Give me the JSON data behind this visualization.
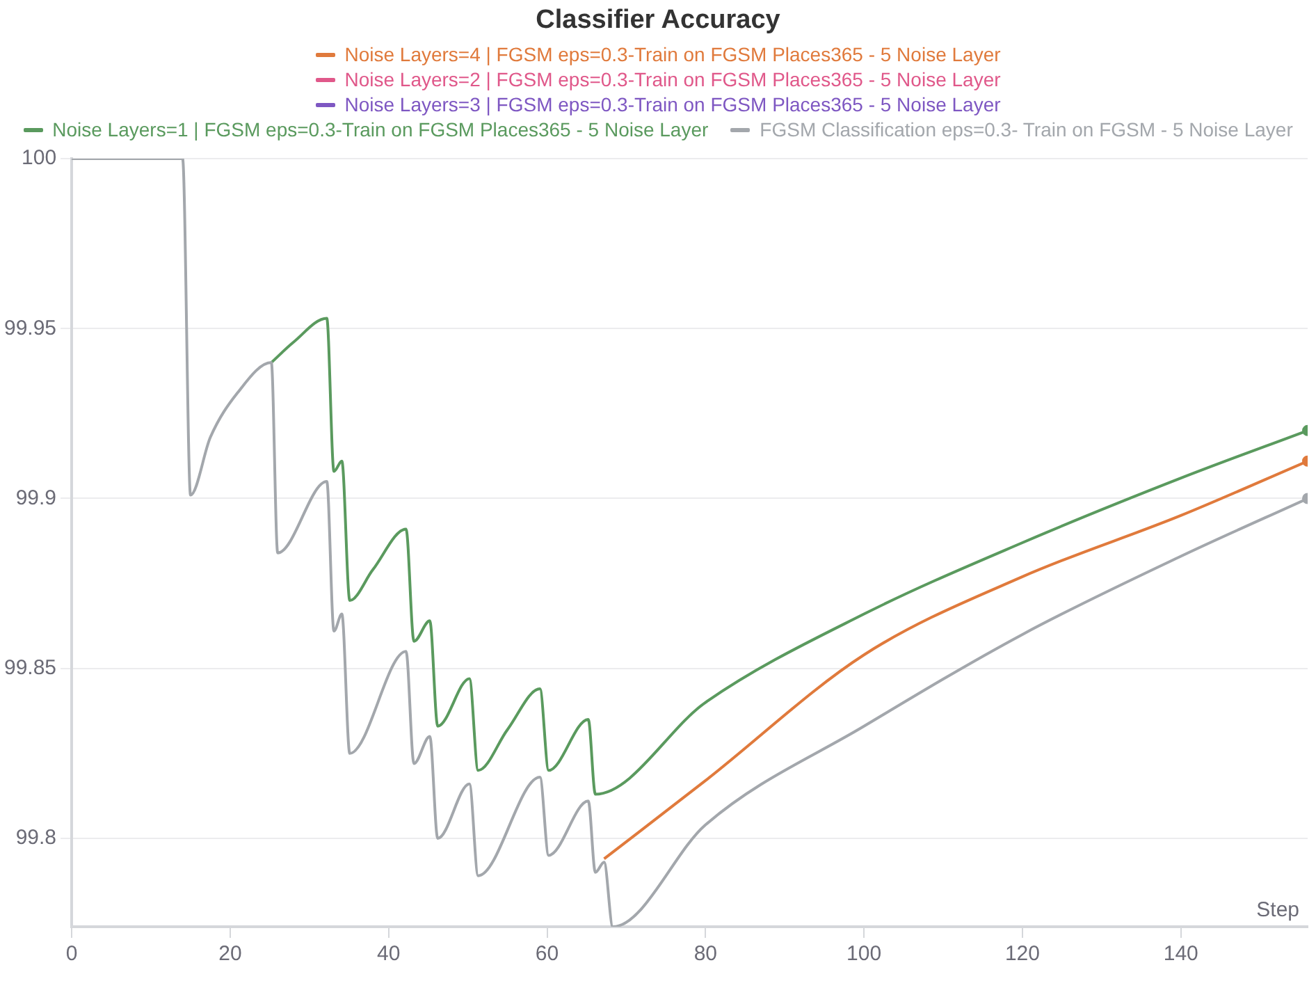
{
  "chart_data": {
    "type": "line",
    "title": "Classifier Accuracy",
    "xlabel": "Step",
    "xlim": [
      0,
      156
    ],
    "xticks": [
      0,
      20,
      40,
      60,
      80,
      100,
      120,
      140
    ],
    "ylim": [
      99.774,
      100
    ],
    "yticks": [
      99.8,
      99.85,
      99.9,
      99.95,
      100
    ],
    "grid": "y",
    "legend": "top",
    "series": [
      {
        "name": "Noise Layers=4 | FGSM eps=0.3-Train on FGSM Places365 - 5 Noise Layer",
        "color": "#e07a3c",
        "x": [
          67.2,
          80,
          100,
          120,
          140,
          156
        ],
        "values": [
          99.794,
          99.817,
          99.854,
          99.877,
          99.895,
          99.911
        ]
      },
      {
        "name": "Noise Layers=2 | FGSM eps=0.3-Train on FGSM Places365 - 5 Noise Layer",
        "color": "#e0588a"
      },
      {
        "name": "Noise Layers=3 | FGSM eps=0.3-Train on FGSM Places365 - 5 Noise Layer",
        "color": "#7e57c2"
      },
      {
        "name": "Noise Layers=1 | FGSM eps=0.3-Train on FGSM Places365 - 5 Noise Layer",
        "color": "#5a9a5e",
        "x": [
          25.2,
          28,
          32.2,
          33.1,
          34.1,
          35.1,
          38,
          42.2,
          43.2,
          45.2,
          46.2,
          50.2,
          51.3,
          55,
          59.1,
          60.2,
          65.2,
          66.1,
          80,
          100,
          120,
          140,
          156
        ],
        "values": [
          99.94,
          99.946,
          99.953,
          99.908,
          99.911,
          99.87,
          99.879,
          99.891,
          99.858,
          99.864,
          99.833,
          99.847,
          99.82,
          99.832,
          99.844,
          99.82,
          99.835,
          99.813,
          99.84,
          99.866,
          99.887,
          99.906,
          99.92
        ]
      },
      {
        "name": "FGSM Classification eps=0.3- Train on FGSM - 5 Noise Layer",
        "color": "#a3a7ac",
        "x": [
          0,
          14,
          15,
          17.5,
          20.9,
          25.2,
          26,
          32.2,
          33.1,
          34.1,
          35.1,
          42.2,
          43.2,
          45.2,
          46.2,
          50.2,
          51.3,
          59.1,
          60.2,
          65.2,
          66.1,
          67.2,
          68.3,
          80,
          100,
          120,
          140,
          156
        ],
        "values": [
          100,
          100,
          99.901,
          99.918,
          99.931,
          99.94,
          99.884,
          99.905,
          99.861,
          99.866,
          99.825,
          99.855,
          99.822,
          99.83,
          99.8,
          99.816,
          99.789,
          99.818,
          99.795,
          99.811,
          99.79,
          99.793,
          99.774,
          99.804,
          99.833,
          99.86,
          99.883,
          99.9
        ]
      }
    ]
  }
}
